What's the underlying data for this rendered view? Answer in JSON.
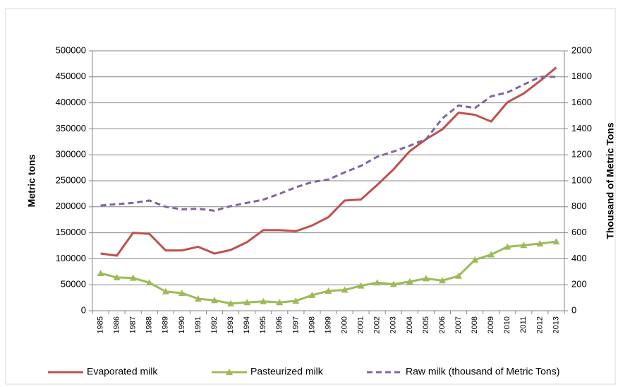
{
  "chart_data": {
    "type": "line",
    "y_label": "Metric tons",
    "y2_label": "Thousand of Metric Tons",
    "categories": [
      "1985",
      "1986",
      "1987",
      "1988",
      "1989",
      "1990",
      "1991",
      "1992",
      "1993",
      "1994",
      "1995",
      "1996",
      "1997",
      "1998",
      "1999",
      "2000",
      "2001",
      "2002",
      "2003",
      "2004",
      "2005",
      "2006",
      "2007",
      "2008",
      "2009",
      "2010",
      "2011",
      "2012",
      "2013"
    ],
    "series": [
      {
        "name": "Evaporated milk",
        "color": "#c0504d",
        "style": "solid",
        "marker": "none",
        "values": [
          110000,
          106000,
          150000,
          148000,
          116000,
          116000,
          123000,
          110000,
          117000,
          132000,
          155000,
          155000,
          153000,
          164000,
          180000,
          212000,
          214000,
          242000,
          272000,
          307000,
          330000,
          349000,
          381000,
          377000,
          364000,
          401000,
          418000,
          442000,
          468000
        ]
      },
      {
        "name": "Pasteurized milk",
        "color": "#9bbb59",
        "style": "solid",
        "marker": "triangle",
        "values": [
          72000,
          64000,
          63000,
          54000,
          37000,
          34000,
          23000,
          20000,
          14000,
          16000,
          18000,
          16000,
          19000,
          30000,
          38000,
          40000,
          48000,
          54000,
          51000,
          56000,
          62000,
          58000,
          67000,
          98000,
          108000,
          123000,
          126000,
          129000,
          133000
        ]
      },
      {
        "name": "Raw milk (thousand of Metric Tons)",
        "color": "#8064a2",
        "style": "dashed",
        "marker": "none",
        "axis": "y2",
        "values": [
          810,
          820,
          830,
          848,
          800,
          780,
          785,
          770,
          805,
          830,
          855,
          900,
          950,
          990,
          1010,
          1065,
          1115,
          1185,
          1225,
          1270,
          1320,
          1480,
          1580,
          1560,
          1650,
          1680,
          1740,
          1800,
          1800
        ]
      }
    ],
    "ylim": [
      0,
      500000
    ],
    "yticks": [
      0,
      50000,
      100000,
      150000,
      200000,
      250000,
      300000,
      350000,
      400000,
      450000,
      500000
    ],
    "y2lim": [
      0,
      2000
    ],
    "y2ticks": [
      0,
      200,
      400,
      600,
      800,
      1000,
      1200,
      1400,
      1600,
      1800,
      2000
    ],
    "grid": true,
    "legend": "bottom"
  }
}
